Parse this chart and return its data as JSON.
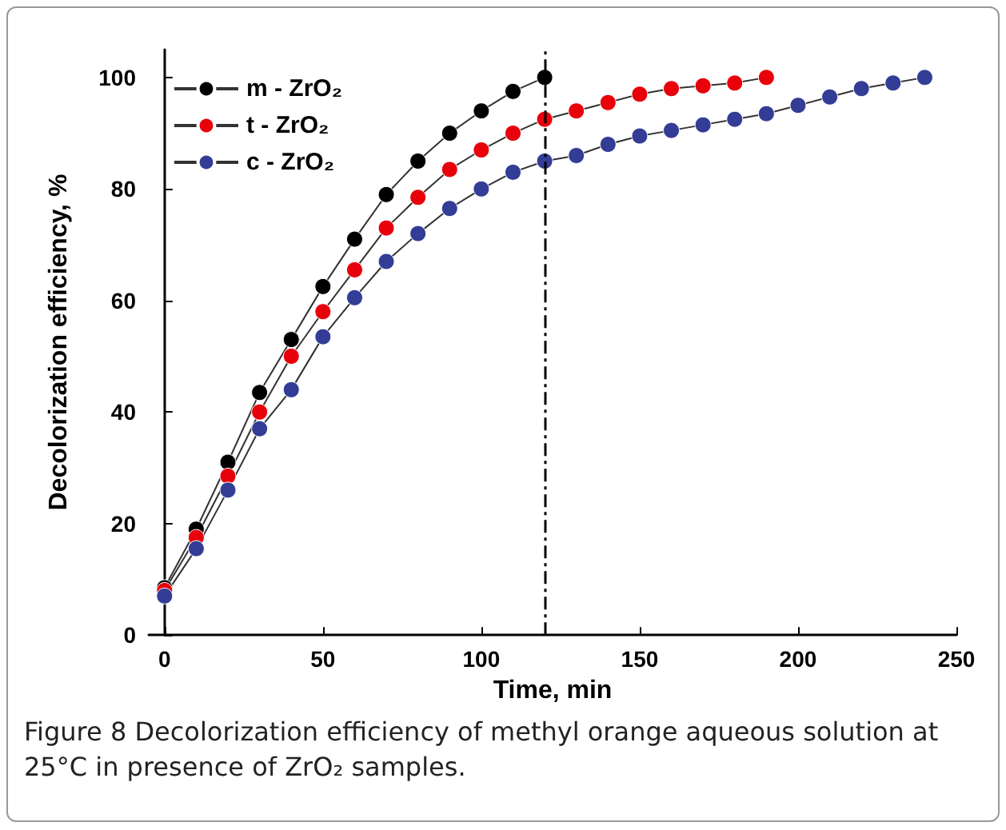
{
  "chart_data": {
    "type": "line",
    "xlabel": "Time, min",
    "ylabel": "Decolorization efficiency, %",
    "xlim": [
      -5,
      250
    ],
    "ylim": [
      0,
      105
    ],
    "xticks": [
      0,
      50,
      100,
      150,
      200,
      250
    ],
    "yticks": [
      0,
      20,
      40,
      60,
      80,
      100
    ],
    "grid": false,
    "legend": "top left",
    "marker": "circle",
    "line_style": "solid",
    "series": [
      {
        "name": "m - ZrO₂",
        "color": "#000000",
        "x": [
          0,
          10,
          20,
          30,
          40,
          50,
          60,
          70,
          80,
          90,
          100,
          110,
          120
        ],
        "values": [
          8.5,
          19,
          31,
          43.5,
          53,
          62.5,
          71,
          79,
          85,
          90,
          94,
          97.5,
          100
        ]
      },
      {
        "name": "t - ZrO₂",
        "color": "#e8000b",
        "x": [
          0,
          10,
          20,
          30,
          40,
          50,
          60,
          70,
          80,
          90,
          100,
          110,
          120,
          130,
          140,
          150,
          160,
          170,
          180,
          190
        ],
        "values": [
          8,
          17.5,
          28.5,
          40,
          50,
          58,
          65.5,
          73,
          78.5,
          83.5,
          87,
          90,
          92.5,
          94,
          95.5,
          97,
          98,
          98.5,
          99,
          100
        ]
      },
      {
        "name": "c - ZrO₂",
        "color": "#333d96",
        "x": [
          0,
          10,
          20,
          30,
          40,
          50,
          60,
          70,
          80,
          90,
          100,
          110,
          120,
          130,
          140,
          150,
          160,
          170,
          180,
          190,
          200,
          210,
          220,
          230,
          240
        ],
        "values": [
          7,
          15.5,
          26,
          37,
          44,
          53.5,
          60.5,
          67,
          72,
          76.5,
          80,
          83,
          85,
          86,
          88,
          89.5,
          90.5,
          91.5,
          92.5,
          93.5,
          95,
          96.5,
          98,
          99,
          100
        ]
      }
    ],
    "ref_lines": [
      {
        "axis": "x",
        "value": 120,
        "color": "#000000",
        "line_style": "dashed"
      }
    ],
    "annotations": [
      "Figure 8 Decolorization efficiency of methyl orange aqueous solution at 25°C in presence of ZrO₂ samples."
    ]
  }
}
